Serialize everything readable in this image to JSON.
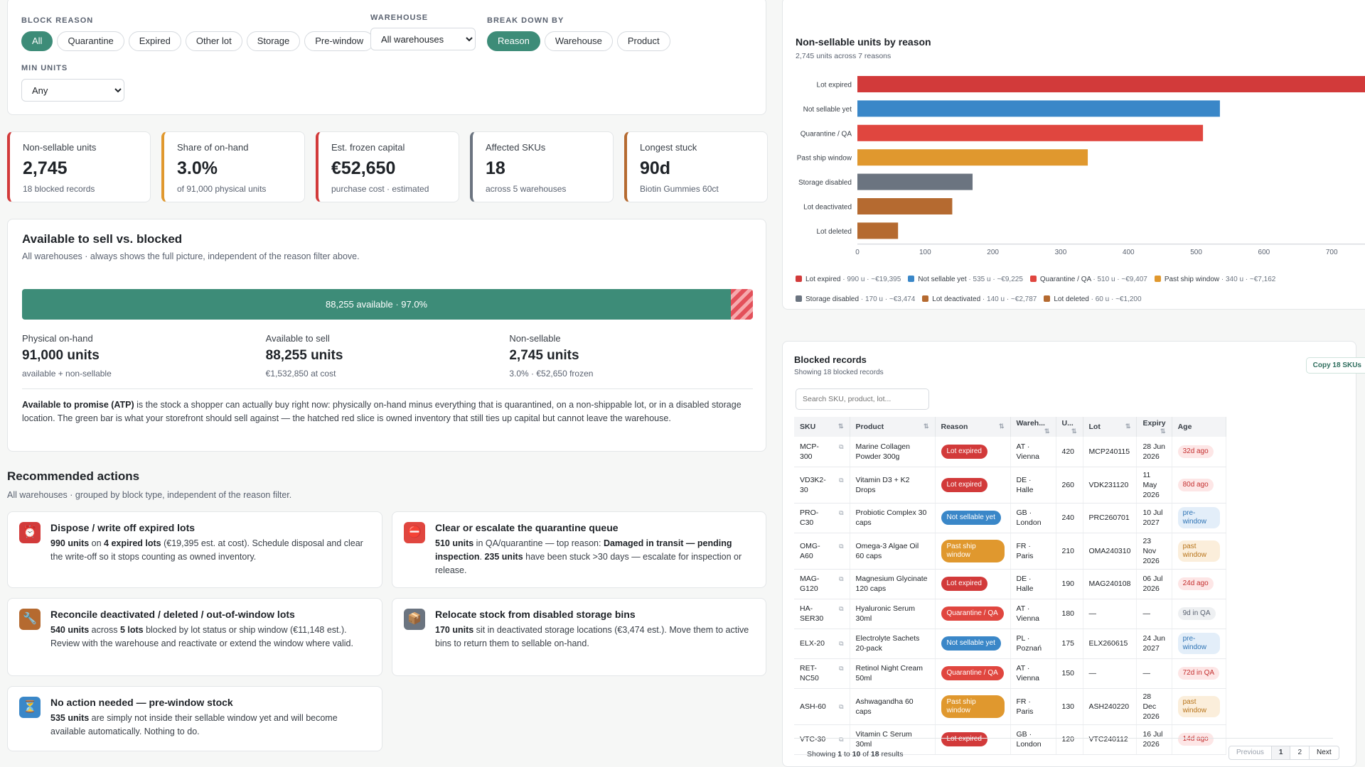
{
  "filters": {
    "block_reason_label": "BLOCK REASON",
    "reasons": [
      "All",
      "Quarantine",
      "Expired",
      "Other lot",
      "Storage",
      "Pre-window"
    ],
    "warehouse_label": "WAREHOUSE",
    "warehouse_value": "All warehouses",
    "breakdown_label": "BREAK DOWN BY",
    "breakdown": [
      "Reason",
      "Warehouse",
      "Product"
    ],
    "min_units_label": "MIN UNITS",
    "min_units_value": "Any"
  },
  "kpis": [
    {
      "title": "Non-sellable units",
      "value": "2,745",
      "sub": "18 blocked records",
      "color": "#d23a3a"
    },
    {
      "title": "Share of on-hand",
      "value": "3.0%",
      "sub": "of 91,000 physical units",
      "color": "#e0982e"
    },
    {
      "title": "Est. frozen capital",
      "value": "€52,650",
      "sub": "purchase cost · estimated",
      "color": "#d23a3a"
    },
    {
      "title": "Affected SKUs",
      "value": "18",
      "sub": "across 5 warehouses",
      "color": "#6b7480"
    },
    {
      "title": "Longest stuck",
      "value": "90d",
      "sub": "Biotin Gummies 60ct",
      "color": "#b56a30"
    }
  ],
  "availability": {
    "title": "Available to sell vs. blocked",
    "subtitle": "All warehouses · always shows the full picture, independent of the reason filter above.",
    "bar_label": "88,255 available · 97.0%",
    "available_fraction": 0.97,
    "stats": [
      {
        "title": "Physical on-hand",
        "value": "91,000 units",
        "sub": "available + non-sellable"
      },
      {
        "title": "Available to sell",
        "value": "88,255 units",
        "sub": "€1,532,850 at cost"
      },
      {
        "title": "Non-sellable",
        "value": "2,745 units",
        "sub": "3.0% · €52,650 frozen"
      }
    ],
    "atp_term": "Available to promise (ATP)",
    "atp_text": " is the stock a shopper can actually buy right now: physically on-hand minus everything that is quarantined, on a non-shippable lot, or in a disabled storage location. The green bar is what your storefront should sell against — the hatched red slice is owned inventory that still ties up capital but cannot leave the warehouse."
  },
  "actions": {
    "title": "Recommended actions",
    "subtitle": "All warehouses · grouped by block type, independent of the reason filter.",
    "items": [
      {
        "icon": "alarm-clock-icon",
        "glyph": "⏰",
        "color": "#d23a3a",
        "title": "Dispose / write off expired lots",
        "parts": [
          [
            "990 units",
            true
          ],
          [
            " on ",
            false
          ],
          [
            "4 expired lots",
            true
          ],
          [
            " (€19,395 est. at cost). Schedule disposal and clear the write-off so it stops counting as owned inventory.",
            false
          ]
        ]
      },
      {
        "icon": "no-entry-icon",
        "glyph": "⛔",
        "color": "#e0463f",
        "title": "Clear or escalate the quarantine queue",
        "parts": [
          [
            "510 units",
            true
          ],
          [
            " in QA/quarantine — top reason: ",
            false
          ],
          [
            "Damaged in transit — pending inspection",
            true
          ],
          [
            ". ",
            false
          ],
          [
            "235 units",
            true
          ],
          [
            " have been stuck >30 days — escalate for inspection or release.",
            false
          ]
        ]
      },
      {
        "icon": "wrench-icon",
        "glyph": "🔧",
        "color": "#b56a30",
        "title": "Reconcile deactivated / deleted / out-of-window lots",
        "parts": [
          [
            "540 units",
            true
          ],
          [
            " across ",
            false
          ],
          [
            "5 lots",
            true
          ],
          [
            " blocked by lot status or ship window (€11,148 est.). Review with the warehouse and reactivate or extend the window where valid.",
            false
          ]
        ]
      },
      {
        "icon": "package-icon",
        "glyph": "📦",
        "color": "#6b7480",
        "title": "Relocate stock from disabled storage bins",
        "parts": [
          [
            "170 units",
            true
          ],
          [
            " sit in deactivated storage locations (€3,474 est.). Move them to active bins to return them to sellable on-hand.",
            false
          ]
        ]
      },
      {
        "icon": "hourglass-icon",
        "glyph": "⏳",
        "color": "#3a87c8",
        "title": "No action needed — pre-window stock",
        "parts": [
          [
            "535 units",
            true
          ],
          [
            " are simply not inside their sellable window yet and will become available automatically. Nothing to do.",
            false
          ]
        ]
      }
    ]
  },
  "chart_data": {
    "type": "bar",
    "orientation": "horizontal",
    "title": "Non-sellable units by reason",
    "subtitle": "2,745 units across 7 reasons",
    "categories": [
      "Lot expired",
      "Not sellable yet",
      "Quarantine / QA",
      "Past ship window",
      "Storage disabled",
      "Lot deactivated",
      "Lot deleted"
    ],
    "values": [
      990,
      535,
      510,
      340,
      170,
      140,
      60
    ],
    "colors": [
      "#d23a3a",
      "#3a87c8",
      "#e0463f",
      "#e0982e",
      "#6b7480",
      "#b56a30",
      "#b56a30"
    ],
    "xticks": [
      0,
      100,
      200,
      300,
      400,
      500,
      600,
      700,
      800,
      900
    ],
    "xlim": [
      0,
      960
    ],
    "legend": [
      {
        "label": "Lot expired",
        "detail": " · 990 u · ~€19,395",
        "color": "#d23a3a"
      },
      {
        "label": "Not sellable yet",
        "detail": " · 535 u · ~€9,225",
        "color": "#3a87c8"
      },
      {
        "label": "Quarantine / QA",
        "detail": " · 510 u · ~€9,407",
        "color": "#e0463f"
      },
      {
        "label": "Past ship window",
        "detail": " · 340 u · ~€7,162",
        "color": "#e0982e"
      },
      {
        "label": "Storage disabled",
        "detail": " · 170 u · ~€3,474",
        "color": "#6b7480"
      },
      {
        "label": "Lot deactivated",
        "detail": " · 140 u · ~€2,787",
        "color": "#b56a30"
      },
      {
        "label": "Lot deleted",
        "detail": " · 60 u · ~€1,200",
        "color": "#b56a30"
      }
    ]
  },
  "records": {
    "title": "Blocked records",
    "subtitle": "Showing 18 blocked records",
    "copy_label": "Copy 18 SKUs",
    "search_placeholder": "Search SKU, product, lot...",
    "columns": [
      "SKU",
      "Product",
      "Reason",
      "Wareh...",
      "U...",
      "Lot",
      "Expiry",
      "Age"
    ],
    "rows": [
      {
        "sku": "MCP-300",
        "product": "Marine Collagen Powder 300g",
        "reason": "Lot expired",
        "reason_color": "#d23a3a",
        "warehouse": "AT · Vienna",
        "units": "420",
        "lot": "MCP240115",
        "expiry": "28 Jun 2026",
        "age": "32d ago",
        "age_bg": "#fde6e6",
        "age_fg": "#c43030"
      },
      {
        "sku": "VD3K2-30",
        "product": "Vitamin D3 + K2 Drops",
        "reason": "Lot expired",
        "reason_color": "#d23a3a",
        "warehouse": "DE · Halle",
        "units": "260",
        "lot": "VDK231120",
        "expiry": "11 May 2026",
        "age": "80d ago",
        "age_bg": "#fde6e6",
        "age_fg": "#c43030"
      },
      {
        "sku": "PRO-C30",
        "product": "Probiotic Complex 30 caps",
        "reason": "Not sellable yet",
        "reason_color": "#3a87c8",
        "warehouse": "GB · London",
        "units": "240",
        "lot": "PRC260701",
        "expiry": "10 Jul 2027",
        "age": "pre-window",
        "age_bg": "#e3eef9",
        "age_fg": "#2f74b5"
      },
      {
        "sku": "OMG-A60",
        "product": "Omega-3 Algae Oil 60 caps",
        "reason": "Past ship window",
        "reason_color": "#e0982e",
        "warehouse": "FR · Paris",
        "units": "210",
        "lot": "OMA240310",
        "expiry": "23 Nov 2026",
        "age": "past window",
        "age_bg": "#fbeedb",
        "age_fg": "#b8741a"
      },
      {
        "sku": "MAG-G120",
        "product": "Magnesium Glycinate 120 caps",
        "reason": "Lot expired",
        "reason_color": "#d23a3a",
        "warehouse": "DE · Halle",
        "units": "190",
        "lot": "MAG240108",
        "expiry": "06 Jul 2026",
        "age": "24d ago",
        "age_bg": "#fde6e6",
        "age_fg": "#c43030"
      },
      {
        "sku": "HA-SER30",
        "product": "Hyaluronic Serum 30ml",
        "reason": "Quarantine / QA",
        "reason_color": "#e0463f",
        "warehouse": "AT · Vienna",
        "units": "180",
        "lot": "—",
        "expiry": "—",
        "age": "9d in QA",
        "age_bg": "#eef0f2",
        "age_fg": "#5a6270"
      },
      {
        "sku": "ELX-20",
        "product": "Electrolyte Sachets 20-pack",
        "reason": "Not sellable yet",
        "reason_color": "#3a87c8",
        "warehouse": "PL · Poznań",
        "units": "175",
        "lot": "ELX260615",
        "expiry": "24 Jun 2027",
        "age": "pre-window",
        "age_bg": "#e3eef9",
        "age_fg": "#2f74b5"
      },
      {
        "sku": "RET-NC50",
        "product": "Retinol Night Cream 50ml",
        "reason": "Quarantine / QA",
        "reason_color": "#e0463f",
        "warehouse": "AT · Vienna",
        "units": "150",
        "lot": "—",
        "expiry": "—",
        "age": "72d in QA",
        "age_bg": "#fde6e6",
        "age_fg": "#c43030"
      },
      {
        "sku": "ASH-60",
        "product": "Ashwagandha 60 caps",
        "reason": "Past ship window",
        "reason_color": "#e0982e",
        "warehouse": "FR · Paris",
        "units": "130",
        "lot": "ASH240220",
        "expiry": "28 Dec 2026",
        "age": "past window",
        "age_bg": "#fbeedb",
        "age_fg": "#b8741a"
      },
      {
        "sku": "VTC-30",
        "product": "Vitamin C Serum 30ml",
        "reason": "Lot expired",
        "reason_color": "#d23a3a",
        "warehouse": "GB · London",
        "units": "120",
        "lot": "VTC240112",
        "expiry": "16 Jul 2026",
        "age": "14d ago",
        "age_bg": "#fde6e6",
        "age_fg": "#c43030"
      }
    ],
    "pagination": {
      "pre": "Showing ",
      "from": "1",
      "mid1": " to ",
      "to": "10",
      "mid2": " of ",
      "total": "18",
      "post": " results",
      "prev": "Previous",
      "pages": [
        "1",
        "2"
      ],
      "next": "Next"
    }
  }
}
